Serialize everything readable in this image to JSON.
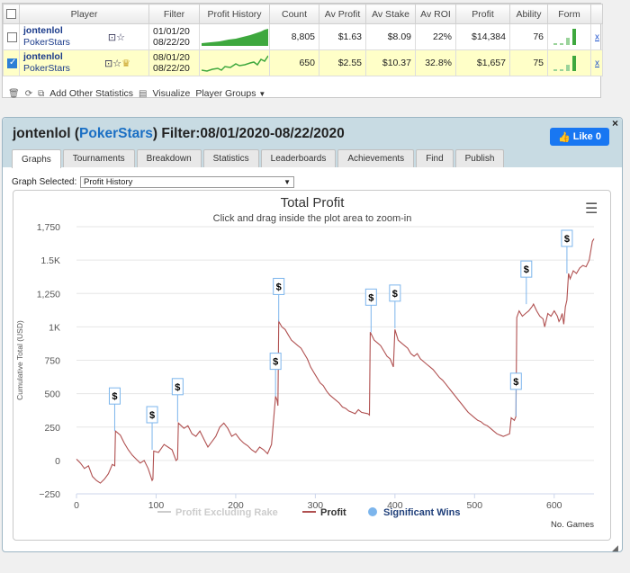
{
  "table": {
    "headers": [
      "",
      "Player",
      "Filter",
      "Profit History",
      "Count",
      "Av Profit",
      "Av Stake",
      "Av ROI",
      "Profit",
      "Ability",
      "Form",
      ""
    ],
    "rows": [
      {
        "checked": false,
        "name": "jontenlol",
        "site": "PokerStars",
        "filter_from": "01/01/20",
        "filter_to": "08/22/20",
        "count": "8,805",
        "av_profit": "$1.63",
        "av_stake": "$8.09",
        "av_roi": "22%",
        "profit": "$14,384",
        "ability": "76",
        "x": "x"
      },
      {
        "checked": true,
        "name": "jontenlol",
        "site": "PokerStars",
        "filter_from": "08/01/20",
        "filter_to": "08/22/20",
        "count": "650",
        "av_profit": "$2.55",
        "av_stake": "$10.37",
        "av_roi": "32.8%",
        "profit": "$1,657",
        "ability": "75",
        "x": "x"
      }
    ]
  },
  "toolbar": {
    "add_stats": "Add Other Statistics",
    "visualize": "Visualize",
    "player_groups": "Player Groups"
  },
  "panel": {
    "player": "jontenlol",
    "site": "PokerStars",
    "filter_label": "Filter:08/01/2020-08/22/2020",
    "like_label": "Like 0",
    "close": "×",
    "tabs": [
      "Graphs",
      "Tournaments",
      "Breakdown",
      "Statistics",
      "Leaderboards",
      "Achievements",
      "Find",
      "Publish"
    ],
    "graph_selected_label": "Graph Selected:",
    "graph_selected_value": "Profit History"
  },
  "chart_data": {
    "type": "line",
    "title": "Total Profit",
    "subtitle": "Click and drag inside the plot area to zoom-in",
    "xlabel": "No. Games",
    "ylabel": "Cumulative Total (USD)",
    "xlim": [
      0,
      650
    ],
    "ylim": [
      -250,
      1750
    ],
    "x_ticks": [
      0,
      100,
      200,
      300,
      400,
      500,
      600
    ],
    "y_ticks": [
      -250,
      0,
      250,
      500,
      750,
      1000,
      1250,
      1500,
      1750
    ],
    "y_tick_labels": [
      "−250",
      "0",
      "250",
      "500",
      "750",
      "1K",
      "1,250",
      "1.5K",
      "1,750"
    ],
    "legend": [
      "Profit Excluding Rake",
      "Profit",
      "Significant Wins"
    ],
    "legend_position": "bottom",
    "series": [
      {
        "name": "Profit",
        "color": "#b05050",
        "points": [
          [
            0,
            10
          ],
          [
            5,
            -20
          ],
          [
            10,
            -60
          ],
          [
            15,
            -40
          ],
          [
            20,
            -120
          ],
          [
            25,
            -150
          ],
          [
            30,
            -170
          ],
          [
            35,
            -140
          ],
          [
            40,
            -100
          ],
          [
            45,
            -30
          ],
          [
            48,
            -40
          ],
          [
            49,
            220
          ],
          [
            55,
            190
          ],
          [
            60,
            130
          ],
          [
            65,
            80
          ],
          [
            70,
            40
          ],
          [
            75,
            10
          ],
          [
            80,
            -20
          ],
          [
            85,
            0
          ],
          [
            90,
            -60
          ],
          [
            95,
            -150
          ],
          [
            96,
            -140
          ],
          [
            97,
            70
          ],
          [
            103,
            60
          ],
          [
            110,
            120
          ],
          [
            115,
            100
          ],
          [
            120,
            80
          ],
          [
            125,
            0
          ],
          [
            127,
            10
          ],
          [
            128,
            280
          ],
          [
            135,
            240
          ],
          [
            140,
            260
          ],
          [
            145,
            200
          ],
          [
            150,
            180
          ],
          [
            155,
            220
          ],
          [
            160,
            160
          ],
          [
            165,
            100
          ],
          [
            170,
            140
          ],
          [
            175,
            180
          ],
          [
            180,
            250
          ],
          [
            185,
            280
          ],
          [
            190,
            240
          ],
          [
            195,
            180
          ],
          [
            200,
            200
          ],
          [
            205,
            160
          ],
          [
            210,
            130
          ],
          [
            215,
            110
          ],
          [
            220,
            80
          ],
          [
            225,
            60
          ],
          [
            230,
            100
          ],
          [
            235,
            80
          ],
          [
            240,
            50
          ],
          [
            245,
            120
          ],
          [
            250,
            480
          ],
          [
            252,
            450
          ],
          [
            253,
            410
          ],
          [
            254,
            1040
          ],
          [
            258,
            1000
          ],
          [
            262,
            980
          ],
          [
            266,
            940
          ],
          [
            270,
            900
          ],
          [
            274,
            880
          ],
          [
            278,
            860
          ],
          [
            282,
            840
          ],
          [
            286,
            800
          ],
          [
            290,
            760
          ],
          [
            294,
            700
          ],
          [
            298,
            660
          ],
          [
            302,
            620
          ],
          [
            306,
            580
          ],
          [
            310,
            560
          ],
          [
            314,
            520
          ],
          [
            318,
            490
          ],
          [
            322,
            470
          ],
          [
            326,
            450
          ],
          [
            330,
            430
          ],
          [
            334,
            400
          ],
          [
            338,
            390
          ],
          [
            342,
            370
          ],
          [
            346,
            360
          ],
          [
            350,
            350
          ],
          [
            354,
            380
          ],
          [
            358,
            360
          ],
          [
            362,
            355
          ],
          [
            366,
            350
          ],
          [
            368,
            340
          ],
          [
            369,
            960
          ],
          [
            374,
            900
          ],
          [
            378,
            880
          ],
          [
            382,
            860
          ],
          [
            386,
            820
          ],
          [
            390,
            780
          ],
          [
            394,
            760
          ],
          [
            398,
            700
          ],
          [
            400,
            980
          ],
          [
            404,
            900
          ],
          [
            408,
            880
          ],
          [
            412,
            860
          ],
          [
            416,
            840
          ],
          [
            420,
            800
          ],
          [
            424,
            780
          ],
          [
            428,
            800
          ],
          [
            432,
            760
          ],
          [
            436,
            740
          ],
          [
            440,
            720
          ],
          [
            444,
            700
          ],
          [
            448,
            680
          ],
          [
            452,
            650
          ],
          [
            456,
            620
          ],
          [
            460,
            600
          ],
          [
            464,
            570
          ],
          [
            468,
            540
          ],
          [
            472,
            510
          ],
          [
            476,
            480
          ],
          [
            480,
            450
          ],
          [
            484,
            420
          ],
          [
            488,
            390
          ],
          [
            492,
            360
          ],
          [
            496,
            340
          ],
          [
            500,
            320
          ],
          [
            504,
            300
          ],
          [
            508,
            290
          ],
          [
            512,
            270
          ],
          [
            516,
            260
          ],
          [
            520,
            240
          ],
          [
            524,
            220
          ],
          [
            528,
            200
          ],
          [
            532,
            190
          ],
          [
            536,
            180
          ],
          [
            540,
            190
          ],
          [
            544,
            200
          ],
          [
            546,
            320
          ],
          [
            550,
            300
          ],
          [
            552,
            330
          ],
          [
            553,
            1070
          ],
          [
            556,
            1120
          ],
          [
            560,
            1080
          ],
          [
            564,
            1100
          ],
          [
            568,
            1120
          ],
          [
            572,
            1150
          ],
          [
            574,
            1170
          ],
          [
            578,
            1120
          ],
          [
            582,
            1080
          ],
          [
            586,
            1060
          ],
          [
            588,
            1000
          ],
          [
            592,
            1100
          ],
          [
            596,
            1080
          ],
          [
            600,
            1120
          ],
          [
            604,
            1080
          ],
          [
            606,
            1040
          ],
          [
            608,
            1060
          ],
          [
            610,
            1100
          ],
          [
            612,
            1020
          ],
          [
            614,
            1150
          ],
          [
            616,
            1200
          ],
          [
            618,
            1400
          ],
          [
            620,
            1360
          ],
          [
            624,
            1420
          ],
          [
            628,
            1400
          ],
          [
            632,
            1440
          ],
          [
            636,
            1460
          ],
          [
            640,
            1450
          ],
          [
            644,
            1500
          ],
          [
            648,
            1640
          ],
          [
            650,
            1660
          ]
        ]
      }
    ],
    "significant_wins": [
      {
        "x": 48,
        "y": 220,
        "label": "$"
      },
      {
        "x": 95,
        "y": 80,
        "label": "$"
      },
      {
        "x": 127,
        "y": 290,
        "label": "$"
      },
      {
        "x": 250,
        "y": 480,
        "label": "$"
      },
      {
        "x": 254,
        "y": 1040,
        "label": "$"
      },
      {
        "x": 370,
        "y": 960,
        "label": "$"
      },
      {
        "x": 400,
        "y": 990,
        "label": "$"
      },
      {
        "x": 552,
        "y": 330,
        "label": "$"
      },
      {
        "x": 565,
        "y": 1170,
        "label": "$"
      },
      {
        "x": 616,
        "y": 1400,
        "label": "$"
      }
    ]
  }
}
